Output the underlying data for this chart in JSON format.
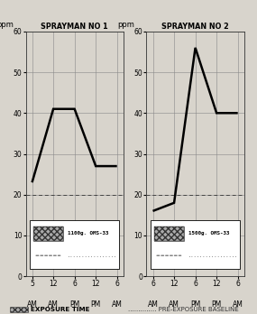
{
  "title1": "SPRAYMAN NO 1",
  "title2": "SPRAYMAN NO 2",
  "ylabel": "ppm",
  "xtick_hours1": [
    "5",
    "12",
    "6",
    "12",
    "6"
  ],
  "xtick_ampm1": [
    "AM",
    "AM",
    "PM",
    "PM",
    "AM"
  ],
  "xtick_hours2": [
    "6",
    "12",
    "6",
    "12",
    "6"
  ],
  "xtick_ampm2": [
    "AM",
    "AM",
    "PM",
    "PM",
    "AM"
  ],
  "x_vals1": [
    0,
    1,
    2,
    3,
    4
  ],
  "y_vals1": [
    23,
    41,
    41,
    27,
    27
  ],
  "x_vals2": [
    0,
    1,
    2,
    3,
    4
  ],
  "y_vals2": [
    16,
    18,
    56,
    40,
    40
  ],
  "baseline": 20,
  "ylim": [
    0,
    60
  ],
  "yticks": [
    0,
    10,
    20,
    30,
    40,
    50,
    60
  ],
  "line_color": "#000000",
  "baseline_color": "#444444",
  "bg_color": "#d8d4cc",
  "legend_text1": "1100g. OMS-33",
  "legend_text2": "1500g. OMS-33",
  "bottom_exposure": "EXPOSURE TIME",
  "bottom_baseline": "PRE-EXPOSURE BASELINE",
  "line_width": 1.8,
  "baseline_lw": 0.7
}
